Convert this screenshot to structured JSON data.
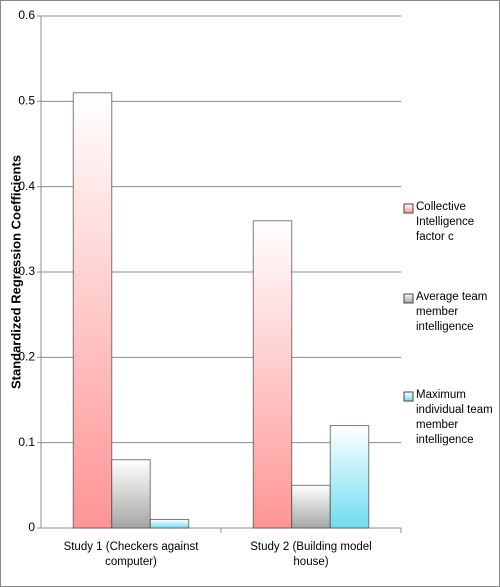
{
  "chart_data": {
    "type": "bar",
    "y_label": "Standardized Regression Coefficients",
    "categories": [
      "Study 1 (Checkers against computer)",
      "Study 2 (Building model house)"
    ],
    "series": [
      {
        "name": "Collective Intelligence factor c",
        "color": "#ff9494",
        "values": [
          0.51,
          0.36
        ]
      },
      {
        "name": "Average team member intelligence",
        "color": "#a6a6a6",
        "values": [
          0.08,
          0.05
        ]
      },
      {
        "name": "Maximum individual team member intelligence",
        "color": "#6fdcf0",
        "values": [
          0.01,
          0.12
        ]
      }
    ],
    "ylim": [
      0,
      0.6
    ],
    "yticks": [
      0,
      0.1,
      0.2,
      0.3,
      0.4,
      0.5,
      0.6
    ],
    "grid": true,
    "legend": "right"
  }
}
